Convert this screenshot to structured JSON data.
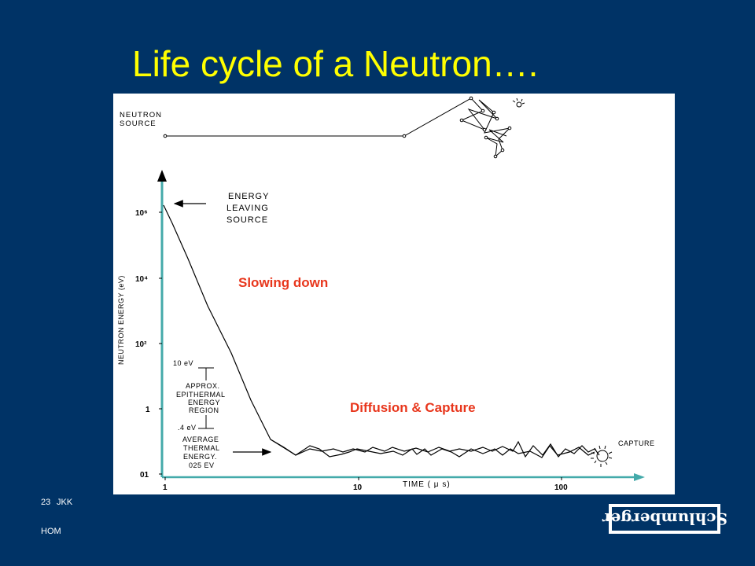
{
  "slide": {
    "title": "Life cycle of a Neutron….",
    "footer_page": "23",
    "footer_author": "JKK",
    "footer_code": "HOM",
    "logo_text": "Schlumberger",
    "colors": {
      "background": "#003366",
      "title": "#FFFF00",
      "annotation": "#E8361C",
      "axis": "#44AAAA"
    }
  },
  "diagram": {
    "source_label_line1": "NEUTRON",
    "source_label_line2": "SOURCE",
    "energy_leaving_line1": "ENERGY",
    "energy_leaving_line2": "LEAVING",
    "energy_leaving_line3": "SOURCE",
    "y_axis_label": "NEUTRON ENERGY (eV)",
    "x_axis_label": "TIME ( μ s)",
    "y_ticks": [
      "10⁶",
      "10⁴",
      "10²",
      "1",
      "01"
    ],
    "x_ticks": [
      "1",
      "10",
      "100"
    ],
    "epithermal_upper": "10 eV",
    "epithermal_line1": "APPROX.",
    "epithermal_line2": "EPITHERMAL",
    "epithermal_line3": "ENERGY",
    "epithermal_line4": "REGION",
    "thermal_lower": ".4 eV",
    "thermal_line1": "AVERAGE",
    "thermal_line2": "THERMAL",
    "thermal_line3": "ENERGY.",
    "thermal_line4": "025 EV",
    "capture_label": "CAPTURE",
    "slowing_down": "Slowing down",
    "diffusion_capture": "Diffusion & Capture",
    "capture_symbol": "capture-burst-icon",
    "source_symbol": "neutron-path-icon"
  }
}
